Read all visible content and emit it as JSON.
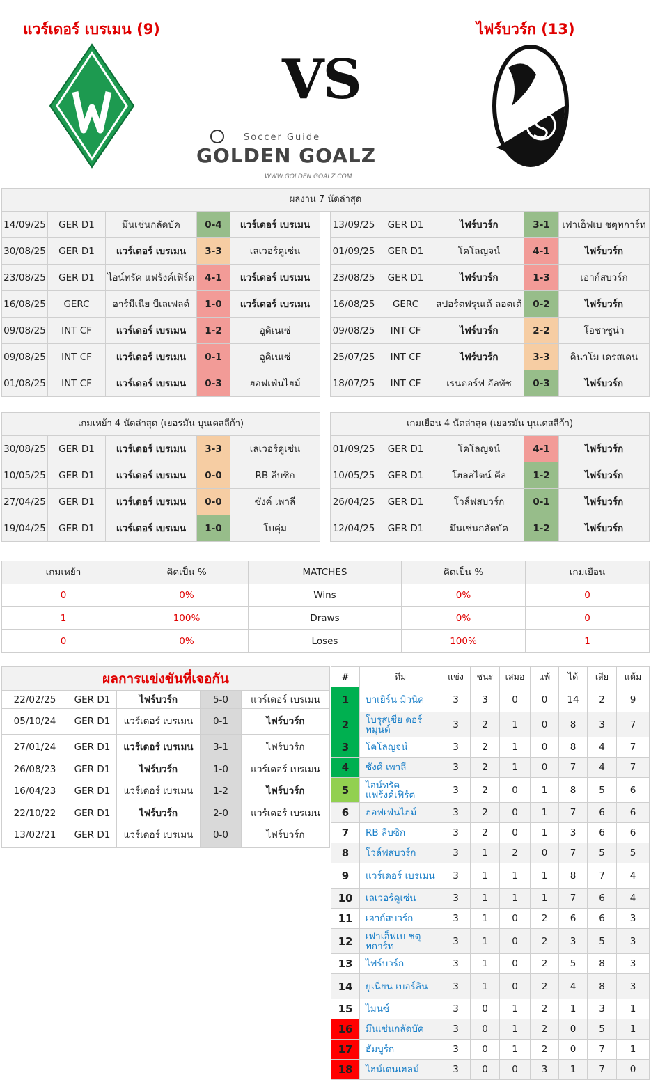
{
  "header": {
    "home_title": "แวร์เดอร์ เบรเมน (9)",
    "away_title": "ไฟร์บวร์ก (13)",
    "vs": "VS",
    "logo_text": "Soccer Guide GOLDEN GOALZ WWW.GOLDEN GOALZ.COM"
  },
  "colors": {
    "win": "#97bd8a",
    "draw": "#f6cda3",
    "loss": "#f29b97",
    "top4": "#00b050",
    "europa": "#92d050",
    "relegation": "#ff0000",
    "title_red": "#e00000",
    "team_link": "#1a7fc8"
  },
  "recent": {
    "title": "ผลงาน 7 นัดล่าสุด",
    "home_team": "แวร์เดอร์ เบรเมน",
    "away_team": "ไฟร์บวร์ก",
    "home": [
      {
        "date": "14/09/25",
        "comp": "GER D1",
        "home": "มึนเช่นกลัดบัค",
        "score": "0-4",
        "away": "แวร์เดอร์ เบรเมน",
        "result": "win"
      },
      {
        "date": "30/08/25",
        "comp": "GER D1",
        "home": "แวร์เดอร์ เบรเมน",
        "score": "3-3",
        "away": "เลเวอร์คูเซ่น",
        "result": "draw"
      },
      {
        "date": "23/08/25",
        "comp": "GER D1",
        "home": "ไอน์ทรัค แฟร้งค์เฟิร์ต",
        "score": "4-1",
        "away": "แวร์เดอร์ เบรเมน",
        "result": "loss"
      },
      {
        "date": "16/08/25",
        "comp": "GERC",
        "home": "อาร์มีเนีย บีเลเฟลด์",
        "score": "1-0",
        "away": "แวร์เดอร์ เบรเมน",
        "result": "loss"
      },
      {
        "date": "09/08/25",
        "comp": "INT CF",
        "home": "แวร์เดอร์ เบรเมน",
        "score": "1-2",
        "away": "อูดิเนเซ่",
        "result": "loss"
      },
      {
        "date": "09/08/25",
        "comp": "INT CF",
        "home": "แวร์เดอร์ เบรเมน",
        "score": "0-1",
        "away": "อูดิเนเซ่",
        "result": "loss"
      },
      {
        "date": "01/08/25",
        "comp": "INT CF",
        "home": "แวร์เดอร์ เบรเมน",
        "score": "0-3",
        "away": "ฮอฟเฟ่นไฮม์",
        "result": "loss"
      }
    ],
    "away": [
      {
        "date": "13/09/25",
        "comp": "GER D1",
        "home": "ไฟร์บวร์ก",
        "score": "3-1",
        "away": "เฟาเอ็ฟเบ ชตุทการ์ท",
        "result": "win"
      },
      {
        "date": "01/09/25",
        "comp": "GER D1",
        "home": "โคโลญจน์",
        "score": "4-1",
        "away": "ไฟร์บวร์ก",
        "result": "loss"
      },
      {
        "date": "23/08/25",
        "comp": "GER D1",
        "home": "ไฟร์บวร์ก",
        "score": "1-3",
        "away": "เอาก์สบวร์ก",
        "result": "loss"
      },
      {
        "date": "16/08/25",
        "comp": "GERC",
        "home": "สปอร์ตฟรุนเด้ ลอตเต้",
        "score": "0-2",
        "away": "ไฟร์บวร์ก",
        "result": "win"
      },
      {
        "date": "09/08/25",
        "comp": "INT CF",
        "home": "ไฟร์บวร์ก",
        "score": "2-2",
        "away": "โอซาซูน่า",
        "result": "draw"
      },
      {
        "date": "25/07/25",
        "comp": "INT CF",
        "home": "ไฟร์บวร์ก",
        "score": "3-3",
        "away": "ดินาโม เดรสเดน",
        "result": "draw"
      },
      {
        "date": "18/07/25",
        "comp": "INT CF",
        "home": "เรนดอร์ฟ อัลทัช",
        "score": "0-3",
        "away": "ไฟร์บวร์ก",
        "result": "win"
      }
    ]
  },
  "last4": {
    "home_title": "เกมเหย้า 4 นัดล่าสุด (เยอรมัน บุนเดสลีก้า)",
    "away_title": "เกมเยือน 4 นัดล่าสุด (เยอรมัน บุนเดสลีก้า)",
    "home": [
      {
        "date": "30/08/25",
        "comp": "GER D1",
        "home": "แวร์เดอร์ เบรเมน",
        "score": "3-3",
        "away": "เลเวอร์คูเซ่น",
        "result": "draw"
      },
      {
        "date": "10/05/25",
        "comp": "GER D1",
        "home": "แวร์เดอร์ เบรเมน",
        "score": "0-0",
        "away": "RB ลีบซิก",
        "result": "draw"
      },
      {
        "date": "27/04/25",
        "comp": "GER D1",
        "home": "แวร์เดอร์ เบรเมน",
        "score": "0-0",
        "away": "ซังค์ เพาลี",
        "result": "draw"
      },
      {
        "date": "19/04/25",
        "comp": "GER D1",
        "home": "แวร์เดอร์ เบรเมน",
        "score": "1-0",
        "away": "โบคุ่ม",
        "result": "win"
      }
    ],
    "away": [
      {
        "date": "01/09/25",
        "comp": "GER D1",
        "home": "โคโลญจน์",
        "score": "4-1",
        "away": "ไฟร์บวร์ก",
        "result": "loss"
      },
      {
        "date": "10/05/25",
        "comp": "GER D1",
        "home": "โฮลสไตน์ คีล",
        "score": "1-2",
        "away": "ไฟร์บวร์ก",
        "result": "win"
      },
      {
        "date": "26/04/25",
        "comp": "GER D1",
        "home": "โวล์ฟสบวร์ก",
        "score": "0-1",
        "away": "ไฟร์บวร์ก",
        "result": "win"
      },
      {
        "date": "12/04/25",
        "comp": "GER D1",
        "home": "มึนเช่นกลัดบัค",
        "score": "1-2",
        "away": "ไฟร์บวร์ก",
        "result": "win"
      }
    ]
  },
  "stats": {
    "headers": [
      "เกมเหย้า",
      "คิดเป็น %",
      "MATCHES",
      "คิดเป็น %",
      "เกมเยือน"
    ],
    "rows": [
      {
        "home": "0",
        "home_pct": "0%",
        "label": "Wins",
        "away_pct": "0%",
        "away": "0"
      },
      {
        "home": "1",
        "home_pct": "100%",
        "label": "Draws",
        "away_pct": "0%",
        "away": "0"
      },
      {
        "home": "0",
        "home_pct": "0%",
        "label": "Loses",
        "away_pct": "100%",
        "away": "1"
      }
    ]
  },
  "h2h": {
    "title": "ผลการแข่งขันที่เจอกัน",
    "rows": [
      {
        "date": "22/02/25",
        "comp": "GER D1",
        "home": "ไฟร์บวร์ก",
        "score": "5-0",
        "away": "แวร์เดอร์ เบรเมน",
        "winner": "home"
      },
      {
        "date": "05/10/24",
        "comp": "GER D1",
        "home": "แวร์เดอร์ เบรเมน",
        "score": "0-1",
        "away": "ไฟร์บวร์ก",
        "winner": "away"
      },
      {
        "date": "27/01/24",
        "comp": "GER D1",
        "home": "แวร์เดอร์ เบรเมน",
        "score": "3-1",
        "away": "ไฟร์บวร์ก",
        "winner": "home"
      },
      {
        "date": "26/08/23",
        "comp": "GER D1",
        "home": "ไฟร์บวร์ก",
        "score": "1-0",
        "away": "แวร์เดอร์ เบรเมน",
        "winner": "home"
      },
      {
        "date": "16/04/23",
        "comp": "GER D1",
        "home": "แวร์เดอร์ เบรเมน",
        "score": "1-2",
        "away": "ไฟร์บวร์ก",
        "winner": "away"
      },
      {
        "date": "22/10/22",
        "comp": "GER D1",
        "home": "ไฟร์บวร์ก",
        "score": "2-0",
        "away": "แวร์เดอร์ เบรเมน",
        "winner": "home"
      },
      {
        "date": "13/02/21",
        "comp": "GER D1",
        "home": "แวร์เดอร์ เบรเมน",
        "score": "0-0",
        "away": "ไฟร์บวร์ก",
        "winner": "none"
      }
    ]
  },
  "standings": {
    "headers": [
      "#",
      "ทีม",
      "แข่ง",
      "ชนะ",
      "เสมอ",
      "แพ้",
      "ได้",
      "เสีย",
      "แต้ม"
    ],
    "rows": [
      {
        "pos": "1",
        "team": "บาเยิร์น มิวนิค",
        "p": "3",
        "w": "3",
        "d": "0",
        "l": "0",
        "gf": "14",
        "ga": "2",
        "pts": "9",
        "zone": "top4"
      },
      {
        "pos": "2",
        "team": "โบรุสเซีย ดอร์ทมุนด์",
        "p": "3",
        "w": "2",
        "d": "1",
        "l": "0",
        "gf": "8",
        "ga": "3",
        "pts": "7",
        "zone": "top4"
      },
      {
        "pos": "3",
        "team": "โคโลญจน์",
        "p": "3",
        "w": "2",
        "d": "1",
        "l": "0",
        "gf": "8",
        "ga": "4",
        "pts": "7",
        "zone": "top4"
      },
      {
        "pos": "4",
        "team": "ซังค์ เพาลี",
        "p": "3",
        "w": "2",
        "d": "1",
        "l": "0",
        "gf": "7",
        "ga": "4",
        "pts": "7",
        "zone": "top4"
      },
      {
        "pos": "5",
        "team": "ไอน์ทรัค แฟร้งค์เฟิร์ต",
        "p": "3",
        "w": "2",
        "d": "0",
        "l": "1",
        "gf": "8",
        "ga": "5",
        "pts": "6",
        "zone": "europa"
      },
      {
        "pos": "6",
        "team": "ฮอฟเฟ่นไฮม์",
        "p": "3",
        "w": "2",
        "d": "0",
        "l": "1",
        "gf": "7",
        "ga": "6",
        "pts": "6",
        "zone": ""
      },
      {
        "pos": "7",
        "team": "RB ลีบซิก",
        "p": "3",
        "w": "2",
        "d": "0",
        "l": "1",
        "gf": "3",
        "ga": "6",
        "pts": "6",
        "zone": ""
      },
      {
        "pos": "8",
        "team": "โวล์ฟสบวร์ก",
        "p": "3",
        "w": "1",
        "d": "2",
        "l": "0",
        "gf": "7",
        "ga": "5",
        "pts": "5",
        "zone": ""
      },
      {
        "pos": "9",
        "team": "แวร์เดอร์ เบรเมน",
        "p": "3",
        "w": "1",
        "d": "1",
        "l": "1",
        "gf": "8",
        "ga": "7",
        "pts": "4",
        "zone": ""
      },
      {
        "pos": "10",
        "team": "เลเวอร์คูเซ่น",
        "p": "3",
        "w": "1",
        "d": "1",
        "l": "1",
        "gf": "7",
        "ga": "6",
        "pts": "4",
        "zone": ""
      },
      {
        "pos": "11",
        "team": "เอาก์สบวร์ก",
        "p": "3",
        "w": "1",
        "d": "0",
        "l": "2",
        "gf": "6",
        "ga": "6",
        "pts": "3",
        "zone": ""
      },
      {
        "pos": "12",
        "team": "เฟาเอ็ฟเบ ชตุทการ์ท",
        "p": "3",
        "w": "1",
        "d": "0",
        "l": "2",
        "gf": "3",
        "ga": "5",
        "pts": "3",
        "zone": ""
      },
      {
        "pos": "13",
        "team": "ไฟร์บวร์ก",
        "p": "3",
        "w": "1",
        "d": "0",
        "l": "2",
        "gf": "5",
        "ga": "8",
        "pts": "3",
        "zone": ""
      },
      {
        "pos": "14",
        "team": "ยูเนี่ยน เบอร์ลิน",
        "p": "3",
        "w": "1",
        "d": "0",
        "l": "2",
        "gf": "4",
        "ga": "8",
        "pts": "3",
        "zone": ""
      },
      {
        "pos": "15",
        "team": "ไมนซ์",
        "p": "3",
        "w": "0",
        "d": "1",
        "l": "2",
        "gf": "1",
        "ga": "3",
        "pts": "1",
        "zone": ""
      },
      {
        "pos": "16",
        "team": "มึนเช่นกลัดบัค",
        "p": "3",
        "w": "0",
        "d": "1",
        "l": "2",
        "gf": "0",
        "ga": "5",
        "pts": "1",
        "zone": "relegation"
      },
      {
        "pos": "17",
        "team": "ฮัมบูร์ก",
        "p": "3",
        "w": "0",
        "d": "1",
        "l": "2",
        "gf": "0",
        "ga": "7",
        "pts": "1",
        "zone": "relegation"
      },
      {
        "pos": "18",
        "team": "ไฮน์เดนเฮลม์",
        "p": "3",
        "w": "0",
        "d": "0",
        "l": "3",
        "gf": "1",
        "ga": "7",
        "pts": "0",
        "zone": "relegation"
      }
    ]
  }
}
